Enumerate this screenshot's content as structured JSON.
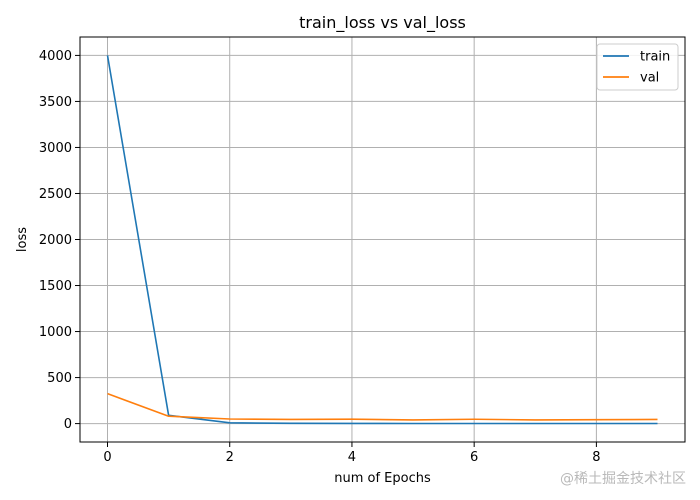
{
  "chart_data": {
    "type": "line",
    "title": "train_loss vs val_loss",
    "xlabel": "num of Epochs",
    "ylabel": "loss",
    "xlim": [
      -0.45,
      9.45
    ],
    "ylim": [
      -200,
      4200
    ],
    "xticks": [
      0,
      2,
      4,
      6,
      8
    ],
    "yticks": [
      0,
      500,
      1000,
      1500,
      2000,
      2500,
      3000,
      3500,
      4000
    ],
    "grid": true,
    "legend_position": "top-right",
    "x": [
      0,
      1,
      2,
      3,
      4,
      5,
      6,
      7,
      8,
      9
    ],
    "series": [
      {
        "name": "train",
        "color": "#1f77b4",
        "values": [
          4000,
          90,
          8,
          3,
          2,
          1,
          1,
          1,
          1,
          1
        ]
      },
      {
        "name": "val",
        "color": "#ff7f0e",
        "values": [
          325,
          80,
          50,
          45,
          48,
          40,
          47,
          40,
          42,
          45
        ]
      }
    ]
  },
  "watermark": "@稀土掘金技术社区"
}
